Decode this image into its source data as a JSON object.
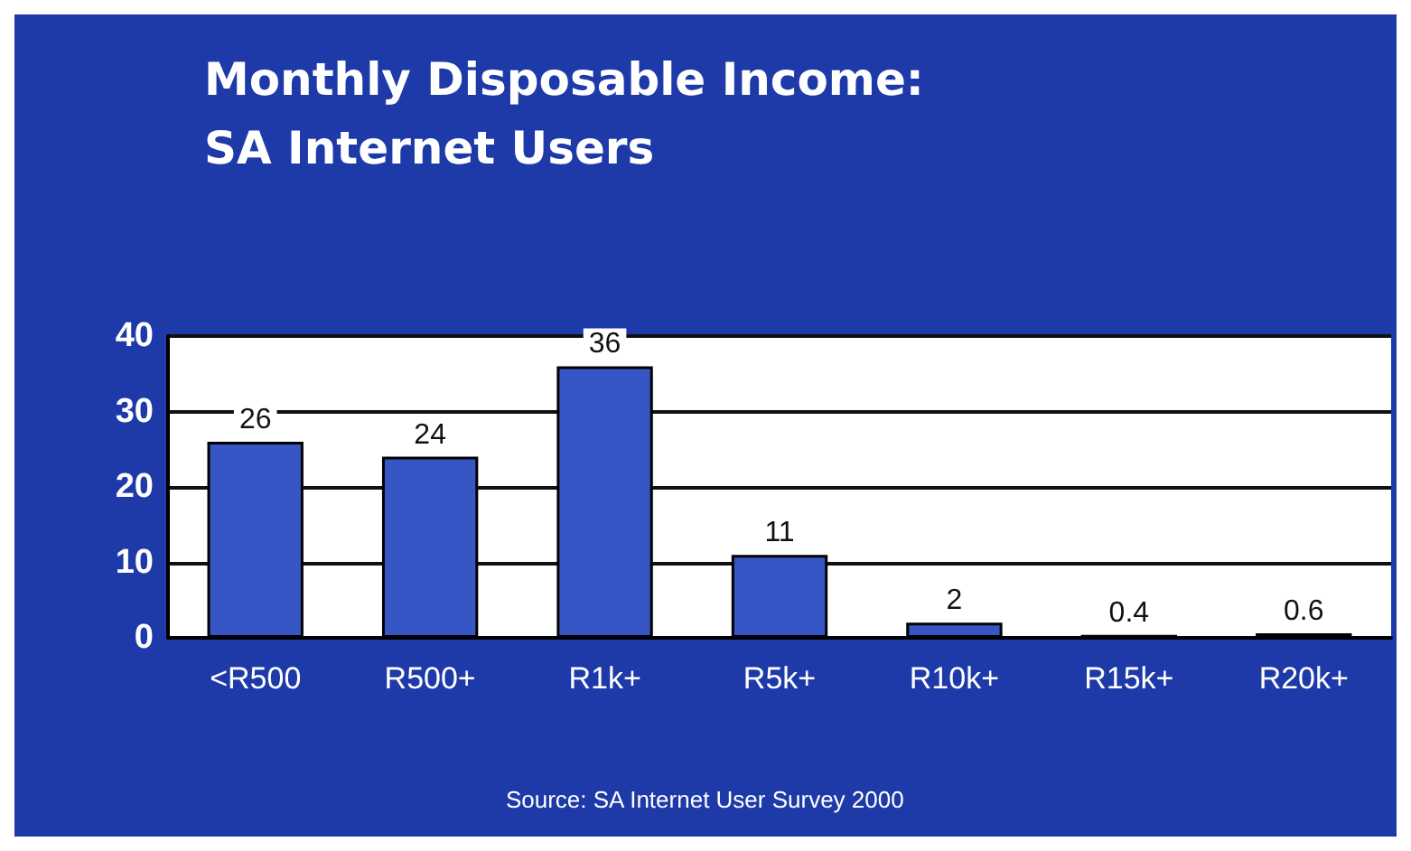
{
  "chart_data": {
    "type": "bar",
    "title": "Monthly Disposable Income: SA Internet Users",
    "categories": [
      "<R500",
      "R500+",
      "R1k+",
      "R5k+",
      "R10k+",
      "R15k+",
      "R20k+"
    ],
    "values": [
      26,
      24,
      36,
      11,
      2,
      0.4,
      0.6
    ],
    "color": "#3556c4",
    "data_labels": true,
    "ylim": [
      0,
      40
    ],
    "yticks": [
      0,
      10,
      20,
      30,
      40
    ],
    "grid": "y",
    "annotations": [
      "Source: SA Internet User Survey 2000"
    ]
  }
}
